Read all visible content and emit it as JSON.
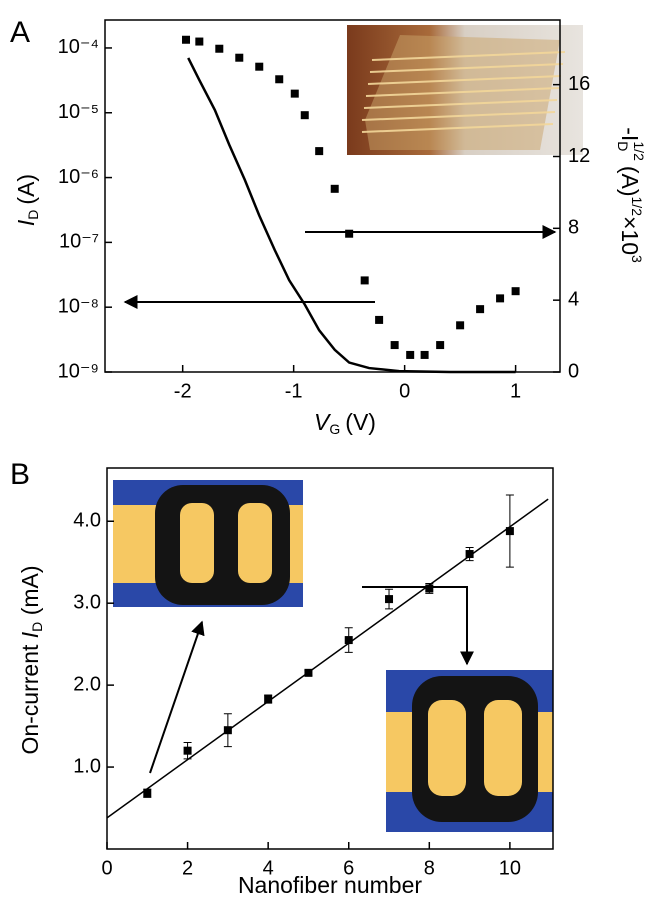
{
  "chart_data": [
    {
      "type": "line",
      "panel_label": "A",
      "xlabel": [
        "V",
        "G",
        "(V)"
      ],
      "ylabel": [
        "I",
        "D",
        "(A)"
      ],
      "y2label": [
        "-I",
        "D",
        "1/2",
        "(A)",
        "1/2",
        "×10",
        "3"
      ],
      "xlim": [
        -2.7,
        1.4
      ],
      "xticks": [
        -2,
        -1,
        0,
        1
      ],
      "yscale": "log",
      "ylim": [
        1e-09,
        0.00027
      ],
      "yticks": [
        {
          "value": 1e-09,
          "label": "10⁻⁹"
        },
        {
          "value": 1e-08,
          "label": "10⁻⁸"
        },
        {
          "value": 1e-07,
          "label": "10⁻⁷"
        },
        {
          "value": 1e-06,
          "label": "10⁻⁶"
        },
        {
          "value": 1e-05,
          "label": "10⁻⁵"
        },
        {
          "value": 0.0001,
          "label": "10⁻⁴"
        }
      ],
      "y2lim": [
        0,
        19.6
      ],
      "y2ticks": [
        0,
        4,
        8,
        12,
        16
      ],
      "series": [
        {
          "color": "#000000",
          "marker": "none",
          "x": [
            -1.95,
            -1.85,
            -1.71,
            -1.58,
            -1.44,
            -1.31,
            -1.17,
            -1.04,
            -0.9,
            -0.77,
            -0.63,
            -0.5,
            -0.32,
            -0.05,
            0.41,
            1.0
          ],
          "values": [
            7e-05,
            3.2e-05,
            1.1e-05,
            3.2e-06,
            9.2e-07,
            2.6e-07,
            7.6e-08,
            2.6e-08,
            1.1e-08,
            4.4e-09,
            2.2e-09,
            1.4e-09,
            1.15e-09,
            1.03e-09,
            1e-09,
            1e-09
          ]
        },
        {
          "color": "#000000",
          "marker": "square",
          "axis": "y2",
          "x": [
            -1.97,
            -1.85,
            -1.67,
            -1.49,
            -1.31,
            -1.13,
            -0.99,
            -0.9,
            -0.77,
            -0.63,
            -0.5,
            -0.36,
            -0.23,
            -0.09,
            0.05,
            0.18,
            0.32,
            0.5,
            0.68,
            0.86,
            1.0
          ],
          "values": [
            18.5,
            18.4,
            18.0,
            17.5,
            17.0,
            16.3,
            15.5,
            14.3,
            12.3,
            10.2,
            7.7,
            5.1,
            2.9,
            1.5,
            0.95,
            0.95,
            1.5,
            2.6,
            3.5,
            4.1,
            4.5
          ]
        }
      ]
    },
    {
      "type": "scatter",
      "panel_label": "B",
      "xlabel": "Nanofiber number",
      "ylabel": [
        "On-current ",
        "I",
        "D",
        " (mA)"
      ],
      "xlim": [
        0,
        11.07
      ],
      "xticks": [
        0,
        2,
        4,
        6,
        8,
        10
      ],
      "ylim": [
        0,
        4.65
      ],
      "yticks": [
        {
          "value": 1,
          "label": "1.0"
        },
        {
          "value": 2,
          "label": "2.0"
        },
        {
          "value": 3,
          "label": "3.0"
        },
        {
          "value": 4,
          "label": "4.0"
        }
      ],
      "series": [
        {
          "color": "#000000",
          "marker": "square",
          "x": [
            1,
            2,
            3,
            4,
            5,
            6,
            7,
            8,
            9,
            10
          ],
          "values": [
            0.68,
            1.2,
            1.45,
            1.83,
            2.15,
            2.55,
            3.05,
            3.18,
            3.6,
            3.88
          ],
          "errors": [
            0.05,
            0.1,
            0.2,
            0.05,
            0.03,
            0.15,
            0.12,
            0.06,
            0.08,
            0.44
          ]
        }
      ],
      "fit": {
        "color": "#000000",
        "x": [
          0,
          10.95
        ],
        "values": [
          0.38,
          4.27
        ]
      }
    }
  ]
}
